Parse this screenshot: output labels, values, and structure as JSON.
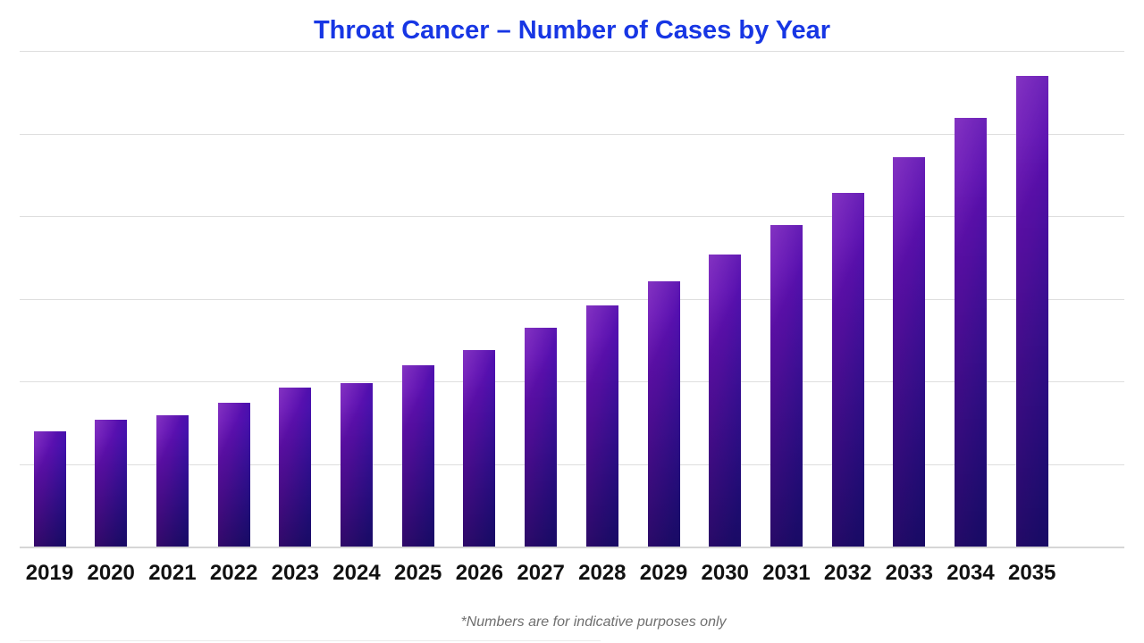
{
  "title": {
    "text": "Throat Cancer – Number of Cases by Year"
  },
  "footnote": {
    "text": "*Numbers are for indicative purposes only"
  },
  "colors": {
    "title": "#1736e4",
    "gridline": "#dedede",
    "axis_line": "#d6d6d6",
    "x_label": "#111111",
    "footnote": "#6f6f6f",
    "bar_gradient_left": "#6f11b8",
    "bar_gradient_mid": "#5a10b0",
    "bar_gradient_right": "#2b12a8",
    "background": "#ffffff"
  },
  "chart_data": {
    "type": "bar",
    "title": "Throat Cancer – Number of Cases by Year",
    "categories": [
      "2019",
      "2020",
      "2021",
      "2022",
      "2023",
      "2024",
      "2025",
      "2026",
      "2027",
      "2028",
      "2029",
      "2030",
      "2031",
      "2032",
      "2033",
      "2034",
      "2035"
    ],
    "values": [
      1.39,
      1.53,
      1.59,
      1.74,
      1.92,
      1.98,
      2.2,
      2.38,
      2.65,
      2.92,
      3.21,
      3.53,
      3.89,
      4.28,
      4.71,
      5.19,
      5.7
    ],
    "xlabel": "",
    "ylabel": "",
    "ylim": [
      0,
      6
    ],
    "gridline_interval": 1,
    "y_axis_tick_labels_visible": false,
    "value_note": "y-axis is unlabeled; values estimated in horizontal-gridline units from bar heights",
    "grid": "horizontal gridlines on, incl. top border line and baseline",
    "legend": "none",
    "data_labels": "none",
    "annotations": [
      "*Numbers are for indicative purposes only"
    ]
  }
}
